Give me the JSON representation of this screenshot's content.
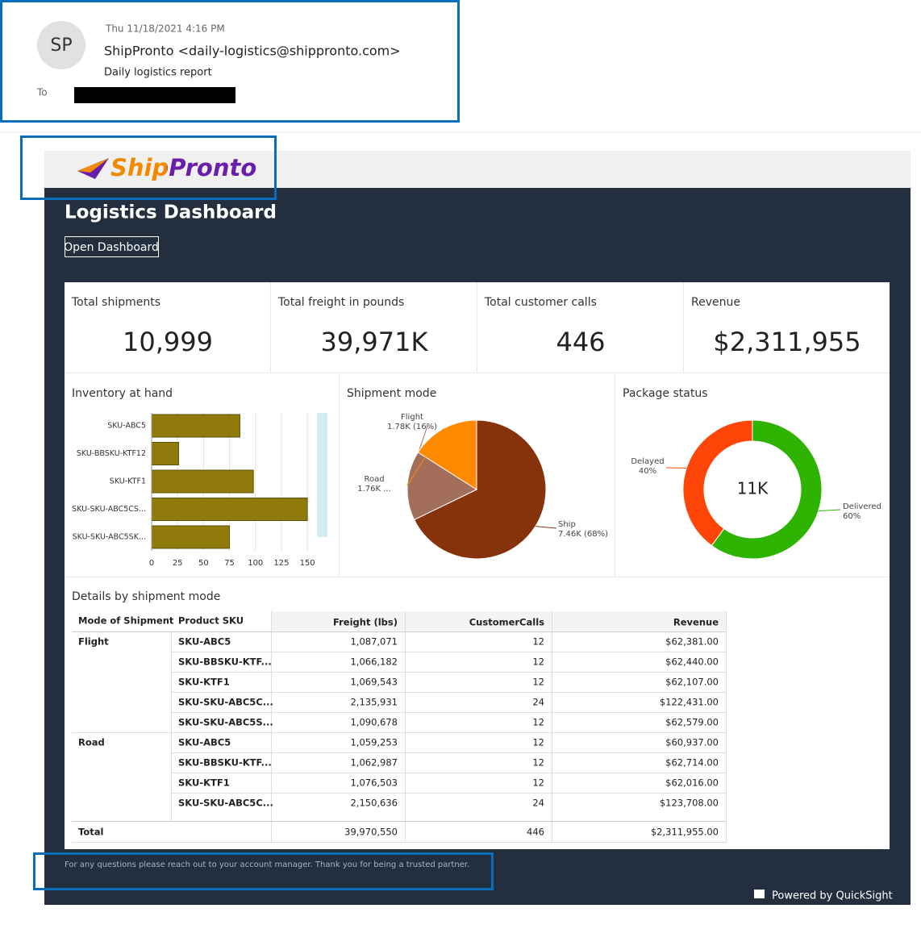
{
  "email": {
    "avatar": "SP",
    "date": "Thu 11/18/2021 4:16 PM",
    "sender": "ShipPronto <daily-logistics@shippronto.com>",
    "subject": "Daily logistics report",
    "to_label": "To"
  },
  "logo": "ShipPronto",
  "dashboard": {
    "title": "Logistics Dashboard",
    "button": "Open Dashboard",
    "kpis": [
      {
        "label": "Total shipments",
        "value": "10,999"
      },
      {
        "label": "Total freight in pounds",
        "value": "39,971K"
      },
      {
        "label": "Total customer calls",
        "value": "446"
      },
      {
        "label": "Revenue",
        "value": "$2,311,955"
      }
    ],
    "table": {
      "title": "Details by shipment mode",
      "columns": [
        "Mode of Shipment",
        "Product SKU",
        "Freight (lbs)",
        "CustomerCalls",
        "Revenue"
      ],
      "rows": [
        [
          "Flight",
          "SKU-ABC5",
          "1,087,071",
          "12",
          "$62,381.00"
        ],
        [
          null,
          "SKU-BBSKU-KTF...",
          "1,066,182",
          "12",
          "$62,440.00"
        ],
        [
          null,
          "SKU-KTF1",
          "1,069,543",
          "12",
          "$62,107.00"
        ],
        [
          null,
          "SKU-SKU-ABC5C...",
          "2,135,931",
          "24",
          "$122,431.00"
        ],
        [
          null,
          "SKU-SKU-ABC5S...",
          "1,090,678",
          "12",
          "$62,579.00"
        ],
        [
          "Road",
          "SKU-ABC5",
          "1,059,253",
          "12",
          "$60,937.00"
        ],
        [
          null,
          "SKU-BBSKU-KTF...",
          "1,062,987",
          "12",
          "$62,714.00"
        ],
        [
          null,
          "SKU-KTF1",
          "1,076,503",
          "12",
          "$62,016.00"
        ],
        [
          null,
          "SKU-SKU-ABC5C...",
          "2,150,636",
          "24",
          "$123,708.00"
        ]
      ],
      "total": [
        "Total",
        "39,970,550",
        "446",
        "$2,311,955.00"
      ]
    },
    "footer": "For any questions please reach out to your account manager. Thank you for being a trusted partner.",
    "powered_by": "Powered by QuickSight"
  },
  "chart_data": [
    {
      "type": "hbar",
      "title": "Inventory at hand",
      "categories": [
        "SKU-ABC5",
        "SKU-BBSKU-KTF12",
        "SKU-KTF1",
        "SKU-SKU-ABC5CS...",
        "SKU-SKU-ABC5SK..."
      ],
      "values": [
        85,
        26,
        98,
        150,
        75
      ],
      "color": "#8f7a0b",
      "xlim": [
        0,
        160
      ],
      "xticks": [
        0,
        25,
        50,
        75,
        100,
        125,
        150
      ],
      "grid": true
    },
    {
      "type": "pie",
      "title": "Shipment mode",
      "categories": [
        "Ship",
        "Flight",
        "Road"
      ],
      "values": [
        7460,
        1780,
        1760
      ],
      "value_labels": [
        "7.46K (68%)",
        "1.78K (16%)",
        "1.76K ..."
      ],
      "colors": [
        "#86330b",
        "#a36e5a",
        "#ff8a00"
      ]
    },
    {
      "type": "donut",
      "title": "Package status",
      "categories": [
        "Delivered",
        "Delayed"
      ],
      "values": [
        60,
        40
      ],
      "value_labels": [
        "60%",
        "40%"
      ],
      "center_label": "11K",
      "colors": [
        "#2db300",
        "#ff4608"
      ]
    }
  ]
}
